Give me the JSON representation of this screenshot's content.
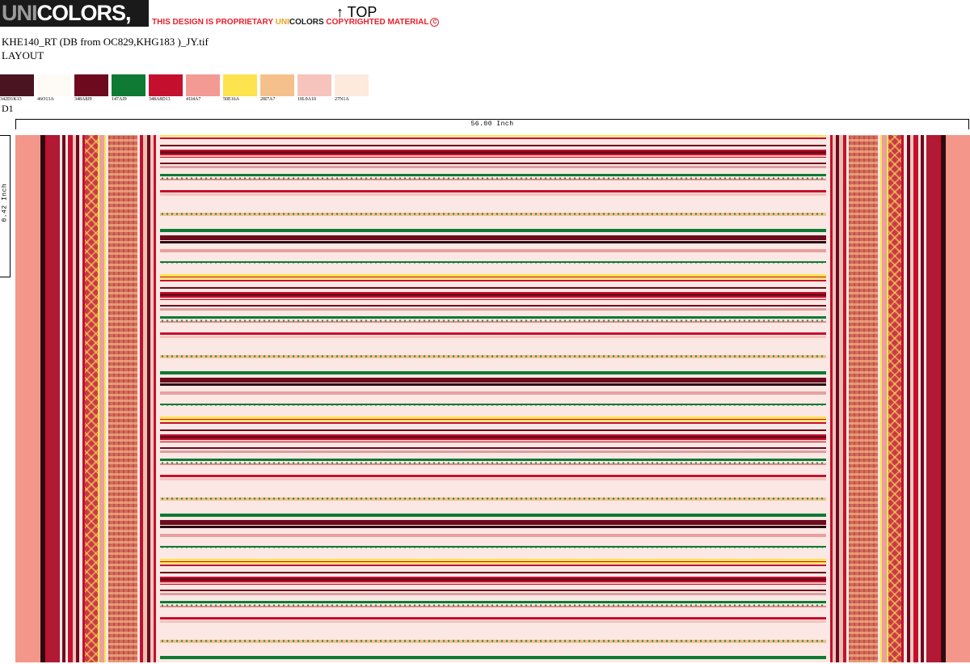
{
  "header": {
    "logo_uni": "UNI",
    "logo_rest": "COLORS, INC.",
    "notice_pre": "THIS DESIGN IS PROPRIETARY ",
    "notice_uni": "UNI",
    "notice_colors": "COLORS",
    "notice_post": " COPYRIGHTED MATERIAL",
    "copyright_symbol": "C",
    "top_label": "↑ TOP"
  },
  "file_name": "KHE140_RT (DB from OC829,KHG183 )_JY.tif",
  "layout_label": "LAYOUT",
  "swatches": [
    {
      "code": "342D1K13",
      "color": "#4a1420"
    },
    {
      "code": "46O13A",
      "color": "#fefbf6"
    },
    {
      "code": "348A8J9",
      "color": "#6e0a1e"
    },
    {
      "code": "147AJ9",
      "color": "#0e7a34"
    },
    {
      "code": "348A8D13",
      "color": "#c4102e"
    },
    {
      "code": "41I4A7",
      "color": "#f49a94"
    },
    {
      "code": "50E16A",
      "color": "#fde34e"
    },
    {
      "code": "28I7A7",
      "color": "#f6c08c"
    },
    {
      "code": "10L9A10",
      "color": "#f6c4bc"
    },
    {
      "code": "27N1A",
      "color": "#fdeadc"
    }
  ],
  "repeat_label": "D1",
  "width_label": "56.00 Inch",
  "height_label": "0.42 Inch",
  "colors": {
    "salmon": "#f4968a",
    "burgundy": "#6e0a1e",
    "red": "#c4102e",
    "green": "#0e7a34",
    "yellow": "#fde34e",
    "peach": "#f6c08c",
    "blush": "#fbe7e3"
  }
}
